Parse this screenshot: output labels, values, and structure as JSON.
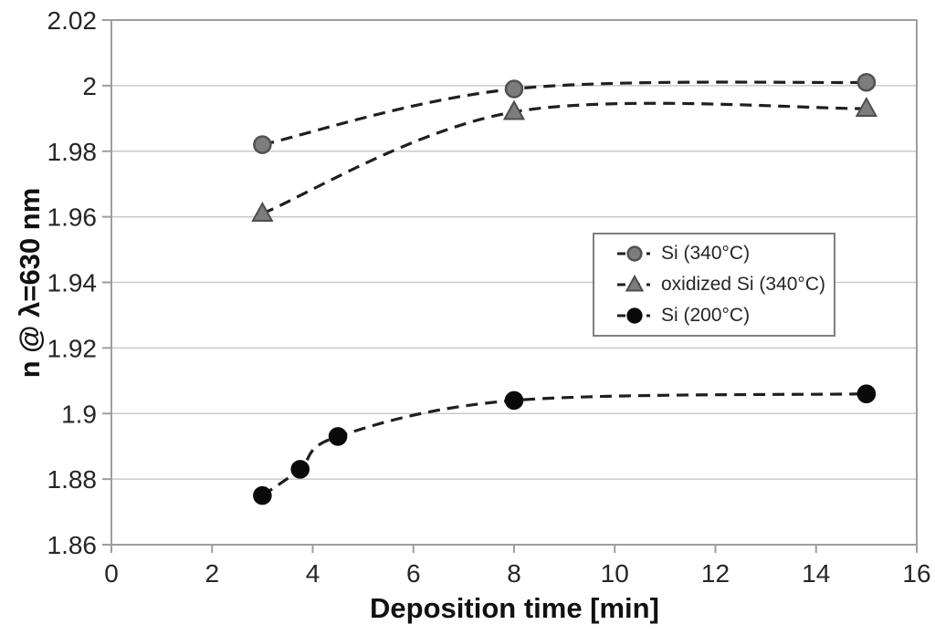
{
  "chart_data": {
    "type": "line",
    "title": "",
    "xlabel": "Deposition time [min]",
    "ylabel": "n @ λ=630 nm",
    "xlim": [
      0,
      16
    ],
    "ylim": [
      1.86,
      2.02
    ],
    "x_ticks": [
      "0",
      "2",
      "4",
      "6",
      "8",
      "10",
      "12",
      "14",
      "16"
    ],
    "y_ticks": [
      "1.86",
      "1.88",
      "1.9",
      "1.92",
      "1.94",
      "1.96",
      "1.98",
      "2",
      "2.02"
    ],
    "grid": "horizontal-only",
    "legend_position": "middle-right",
    "line_style": "dashed",
    "series": [
      {
        "name": "Si (340°C)",
        "marker": "circle",
        "marker_fill": "#7d7d7d",
        "marker_edge": "#525252",
        "line_color": "#1f1f1f",
        "x": [
          3,
          8,
          15
        ],
        "y": [
          1.982,
          1.999,
          2.001
        ]
      },
      {
        "name": "oxidized Si (340°C)",
        "marker": "triangle",
        "marker_fill": "#7d7d7d",
        "marker_edge": "#4d4d4d",
        "line_color": "#1f1f1f",
        "x": [
          3,
          8,
          15
        ],
        "y": [
          1.961,
          1.992,
          1.993
        ]
      },
      {
        "name": "Si (200°C)",
        "marker": "circle",
        "marker_fill": "#0a0a0a",
        "marker_edge": "#0a0a0a",
        "line_color": "#1f1f1f",
        "x": [
          3,
          3.75,
          4.5,
          8,
          15
        ],
        "y": [
          1.875,
          1.883,
          1.893,
          1.904,
          1.906
        ]
      }
    ],
    "colors": {
      "grid": "#c9c9c9",
      "frame": "#9e9e9e",
      "tick": "#9e9e9e",
      "text": "#262626",
      "background": "#ffffff"
    }
  }
}
